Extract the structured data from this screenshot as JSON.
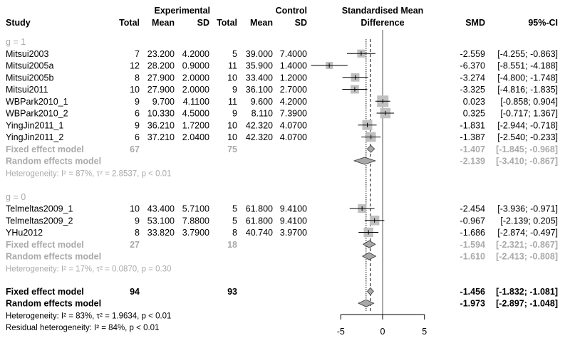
{
  "chart_data": {
    "type": "forest",
    "measure": "Standardised Mean Difference",
    "headers": {
      "study": "Study",
      "experimental": "Experimental",
      "control": "Control",
      "total": "Total",
      "mean": "Mean",
      "sd": "SD",
      "plot_title_1": "Standardised Mean",
      "plot_title_2": "Difference",
      "smd": "SMD",
      "ci": "95%-CI"
    },
    "xlim": [
      -5,
      5
    ],
    "x_ticks": [
      "-5",
      "0",
      "5"
    ],
    "colors": {
      "subgroup_text": "#aaaaaa",
      "square": "#c0c0c0",
      "diamond": "#a8a8a8"
    },
    "groups": [
      {
        "label": "g = 1",
        "studies": [
          {
            "name": "Mitsui2003",
            "e_total": "7",
            "e_mean": "23.200",
            "e_sd": "4.2000",
            "c_total": "5",
            "c_mean": "39.000",
            "c_sd": "7.4000",
            "smd": -2.559,
            "lower": -4.255,
            "upper": -0.863,
            "smd_text": "-2.559",
            "ci_text": "[-4.255; -0.863]"
          },
          {
            "name": "Mitsui2005a",
            "e_total": "12",
            "e_mean": "28.200",
            "e_sd": "0.9000",
            "c_total": "11",
            "c_mean": "35.900",
            "c_sd": "1.4000",
            "smd": -6.37,
            "lower": -8.551,
            "upper": -4.188,
            "smd_text": "-6.370",
            "ci_text": "[-8.551; -4.188]"
          },
          {
            "name": "Mitsui2005b",
            "e_total": "8",
            "e_mean": "27.900",
            "e_sd": "2.0000",
            "c_total": "10",
            "c_mean": "33.400",
            "c_sd": "1.2000",
            "smd": -3.274,
            "lower": -4.8,
            "upper": -1.748,
            "smd_text": "-3.274",
            "ci_text": "[-4.800; -1.748]"
          },
          {
            "name": "Mitsui2011",
            "e_total": "10",
            "e_mean": "27.900",
            "e_sd": "2.0000",
            "c_total": "9",
            "c_mean": "36.100",
            "c_sd": "2.7000",
            "smd": -3.325,
            "lower": -4.816,
            "upper": -1.835,
            "smd_text": "-3.325",
            "ci_text": "[-4.816; -1.835]"
          },
          {
            "name": "WBPark2010_1",
            "e_total": "9",
            "e_mean": "9.700",
            "e_sd": "4.1100",
            "c_total": "11",
            "c_mean": "9.600",
            "c_sd": "4.2000",
            "smd": 0.023,
            "lower": -0.858,
            "upper": 0.904,
            "smd_text": "0.023",
            "ci_text": "[-0.858;  0.904]"
          },
          {
            "name": "WBPark2010_2",
            "e_total": "6",
            "e_mean": "10.330",
            "e_sd": "4.5000",
            "c_total": "9",
            "c_mean": "8.110",
            "c_sd": "7.3900",
            "smd": 0.325,
            "lower": -0.717,
            "upper": 1.367,
            "smd_text": "0.325",
            "ci_text": "[-0.717;  1.367]"
          },
          {
            "name": "YingJin2011_1",
            "e_total": "9",
            "e_mean": "36.210",
            "e_sd": "1.7200",
            "c_total": "10",
            "c_mean": "42.320",
            "c_sd": "4.0700",
            "smd": -1.831,
            "lower": -2.944,
            "upper": -0.718,
            "smd_text": "-1.831",
            "ci_text": "[-2.944; -0.718]"
          },
          {
            "name": "YingJin2011_2",
            "e_total": "6",
            "e_mean": "37.210",
            "e_sd": "2.0400",
            "c_total": "10",
            "c_mean": "42.320",
            "c_sd": "4.0700",
            "smd": -1.387,
            "lower": -2.54,
            "upper": -0.233,
            "smd_text": "-1.387",
            "ci_text": "[-2.540; -0.233]"
          }
        ],
        "fixed": {
          "label": "Fixed effect model",
          "e_total": "67",
          "c_total": "75",
          "smd": -1.407,
          "lower": -1.845,
          "upper": -0.968,
          "smd_text": "-1.407",
          "ci_text": "[-1.845; -0.968]"
        },
        "random": {
          "label": "Random effects model",
          "smd": -2.139,
          "lower": -3.41,
          "upper": -0.867,
          "smd_text": "-2.139",
          "ci_text": "[-3.410; -0.867]"
        },
        "heterogeneity": "Heterogeneity: I² = 87%, τ² = 2.8537, p < 0.01"
      },
      {
        "label": "g = 0",
        "studies": [
          {
            "name": "Telmeltas2009_1",
            "e_total": "10",
            "e_mean": "43.400",
            "e_sd": "5.7100",
            "c_total": "5",
            "c_mean": "61.800",
            "c_sd": "9.4100",
            "smd": -2.454,
            "lower": -3.936,
            "upper": -0.971,
            "smd_text": "-2.454",
            "ci_text": "[-3.936; -0.971]"
          },
          {
            "name": "Telmeltas2009_2",
            "e_total": "9",
            "e_mean": "53.100",
            "e_sd": "7.8800",
            "c_total": "5",
            "c_mean": "61.800",
            "c_sd": "9.4100",
            "smd": -0.967,
            "lower": -2.139,
            "upper": 0.205,
            "smd_text": "-0.967",
            "ci_text": "[-2.139;  0.205]"
          },
          {
            "name": "YHu2012",
            "e_total": "8",
            "e_mean": "33.820",
            "e_sd": "3.7900",
            "c_total": "8",
            "c_mean": "40.740",
            "c_sd": "3.9700",
            "smd": -1.686,
            "lower": -2.874,
            "upper": -0.497,
            "smd_text": "-1.686",
            "ci_text": "[-2.874; -0.497]"
          }
        ],
        "fixed": {
          "label": "Fixed effect model",
          "e_total": "27",
          "c_total": "18",
          "smd": -1.594,
          "lower": -2.321,
          "upper": -0.867,
          "smd_text": "-1.594",
          "ci_text": "[-2.321; -0.867]"
        },
        "random": {
          "label": "Random effects model",
          "smd": -1.61,
          "lower": -2.413,
          "upper": -0.808,
          "smd_text": "-1.610",
          "ci_text": "[-2.413; -0.808]"
        },
        "heterogeneity": "Heterogeneity: I² = 17%, τ² = 0.0870, p = 0.30"
      }
    ],
    "overall": {
      "fixed": {
        "label": "Fixed effect model",
        "e_total": "94",
        "c_total": "93",
        "smd": -1.456,
        "lower": -1.832,
        "upper": -1.081,
        "smd_text": "-1.456",
        "ci_text": "[-1.832; -1.081]"
      },
      "random": {
        "label": "Random effects model",
        "smd": -1.973,
        "lower": -2.897,
        "upper": -1.048,
        "smd_text": "-1.973",
        "ci_text": "[-2.897; -1.048]"
      },
      "heterogeneity": "Heterogeneity: I² = 83%, τ² = 1.9634, p < 0.01",
      "residual_heterogeneity": "Residual heterogeneity: I² = 84%, p < 0.01"
    }
  }
}
